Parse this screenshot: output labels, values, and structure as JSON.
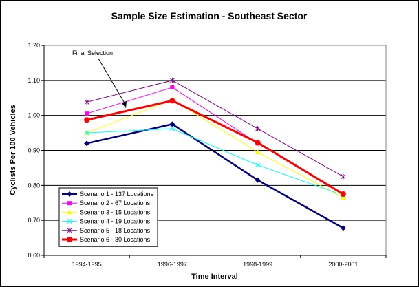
{
  "chart_data": {
    "type": "line",
    "title": "Sample Size Estimation - Southeast Sector",
    "xlabel": "Time Interval",
    "ylabel": "Cyclists Per 100 Vehicles",
    "categories": [
      "1994-1995",
      "1996-1997",
      "1998-1999",
      "2000-2001"
    ],
    "ylim": [
      0.6,
      1.2
    ],
    "yticks": [
      "0.60",
      "0.70",
      "0.80",
      "0.90",
      "1.00",
      "1.10",
      "1.20"
    ],
    "grid": true,
    "legend_position": "bottom-left",
    "annotation": "Final Selection",
    "series": [
      {
        "name": "Scenario 1 - 137 Locations",
        "values": [
          0.92,
          0.975,
          0.815,
          0.678
        ],
        "color": "#000080",
        "marker": "diamond"
      },
      {
        "name": "Scenario 2 - 67 Locations",
        "values": [
          1.005,
          1.08,
          0.92,
          0.775
        ],
        "color": "#ff00ff",
        "marker": "square"
      },
      {
        "name": "Scenario 3 - 15 Locations",
        "values": [
          0.95,
          1.045,
          0.895,
          0.765
        ],
        "color": "#ffff00",
        "marker": "triangle"
      },
      {
        "name": "Scenario 4 - 19 Locations",
        "values": [
          0.95,
          0.962,
          0.858,
          0.772
        ],
        "color": "#00ffff",
        "marker": "x"
      },
      {
        "name": "Scenario 5 - 18 Locations",
        "values": [
          1.038,
          1.1,
          0.962,
          0.825
        ],
        "color": "#800080",
        "marker": "star"
      },
      {
        "name": "Scenario 6 - 30 Locations",
        "values": [
          0.987,
          1.042,
          0.922,
          0.775
        ],
        "color": "#ff0000",
        "marker": "circle"
      }
    ]
  }
}
